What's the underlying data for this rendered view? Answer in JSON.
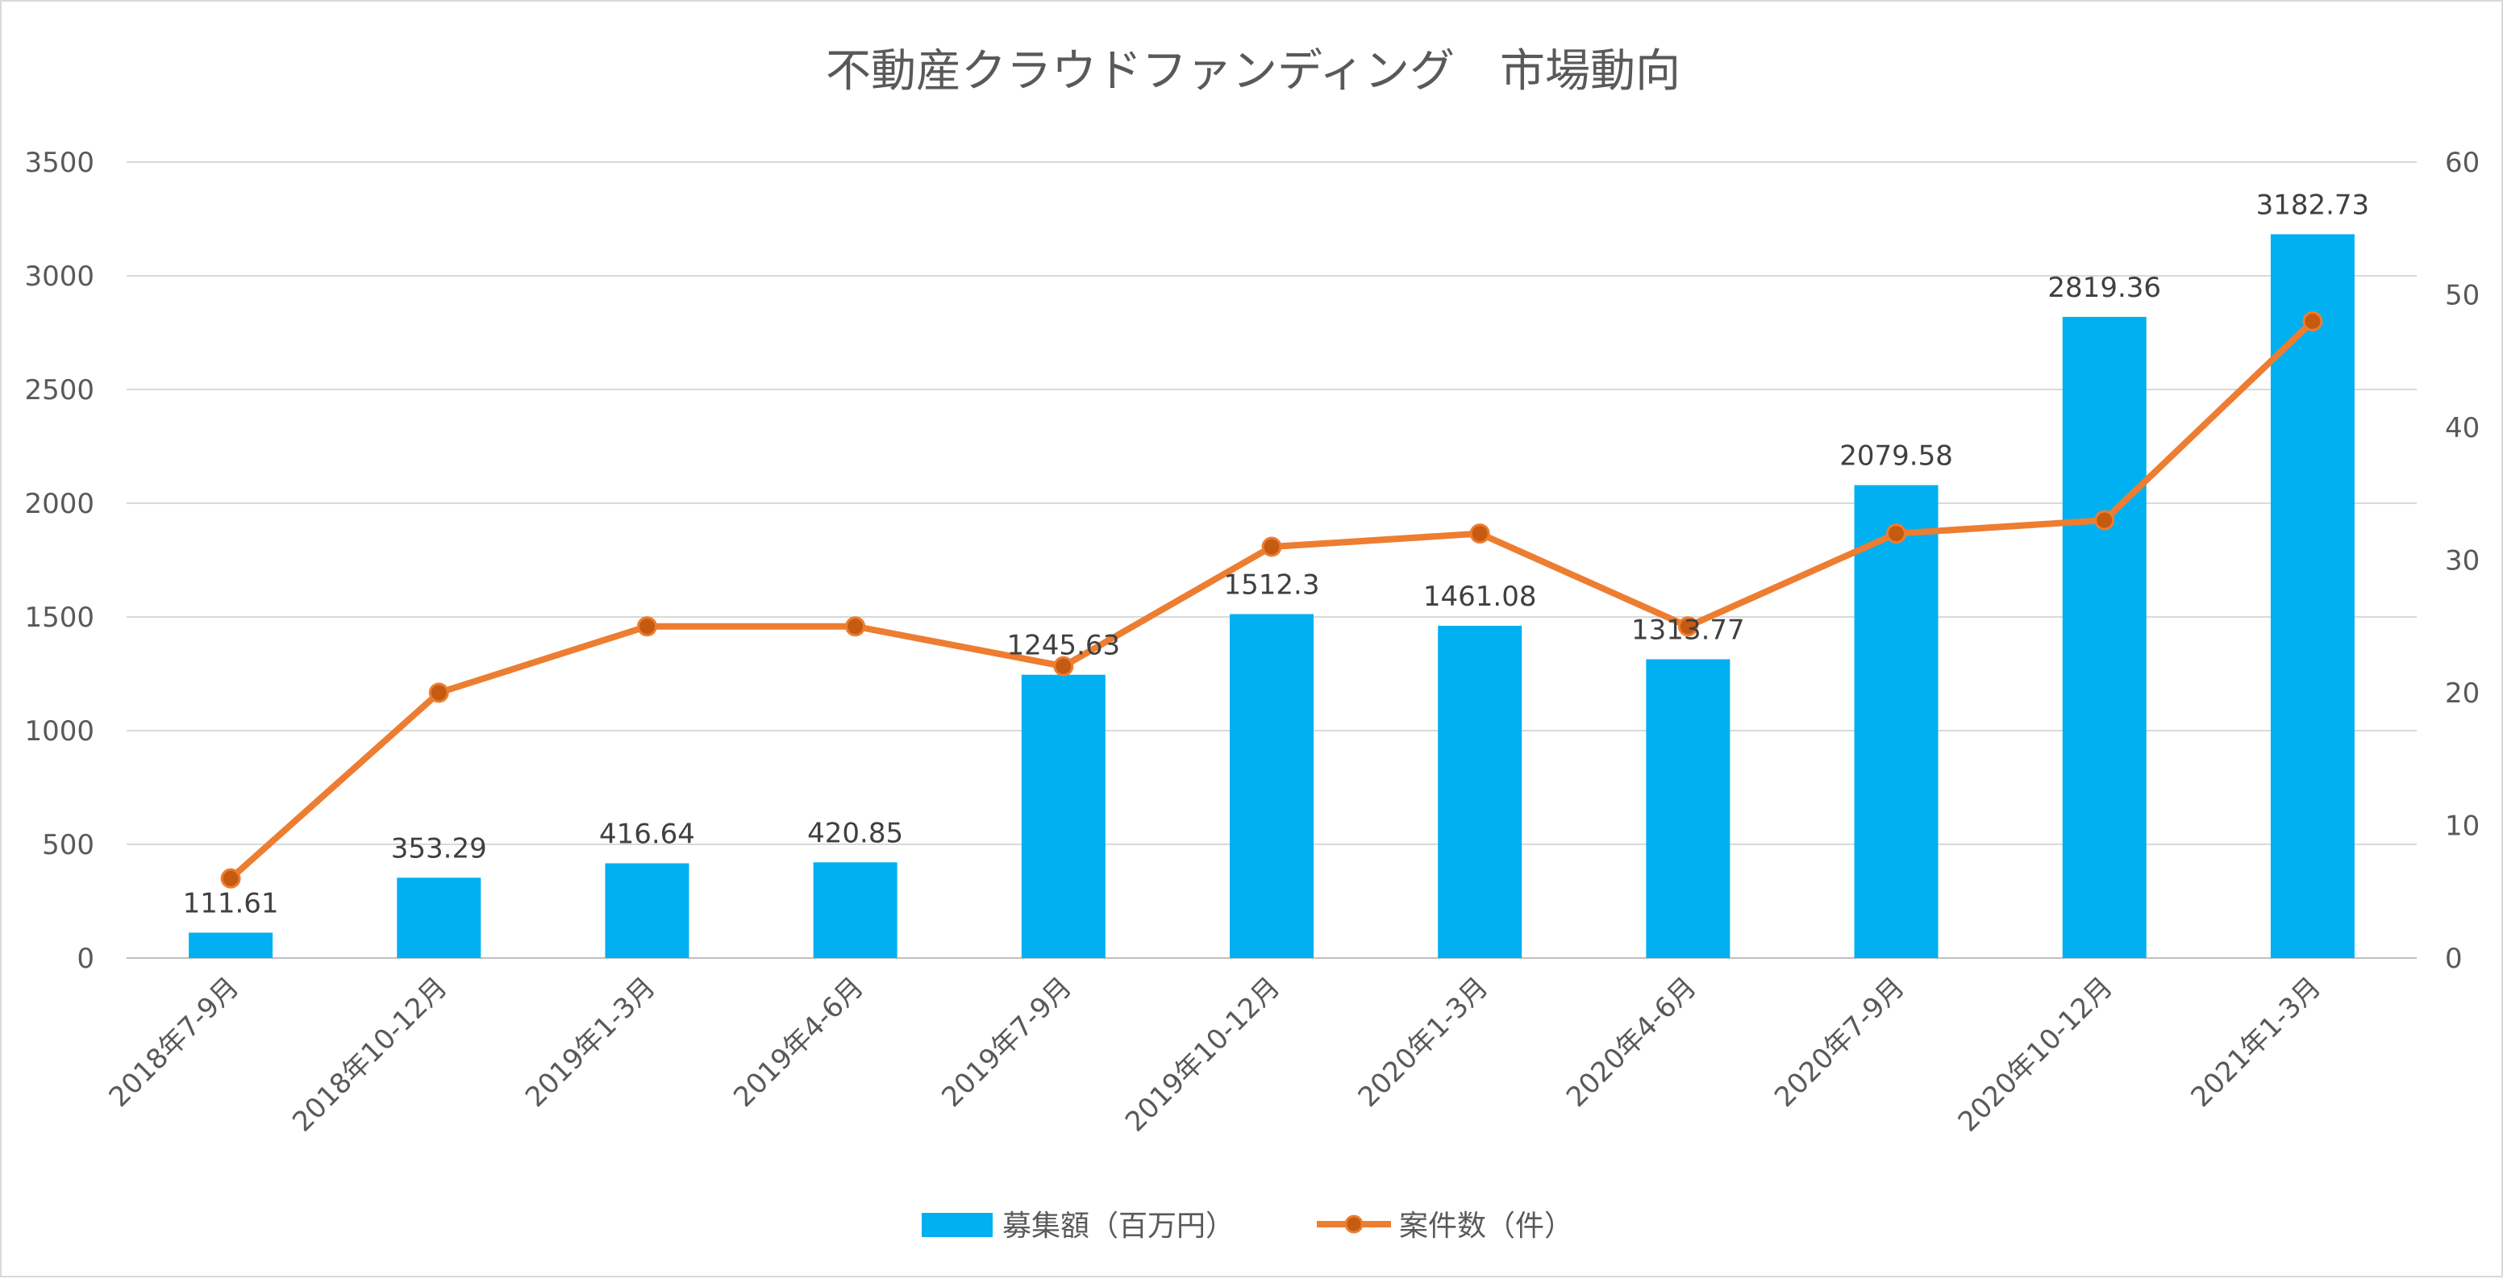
{
  "chart_data": {
    "type": "bar",
    "title": "不動産クラウドファンディング　市場動向",
    "categories": [
      "2018年7-9月",
      "2018年10-12月",
      "2019年1-3月",
      "2019年4-6月",
      "2019年7-9月",
      "2019年10-12月",
      "2020年1-3月",
      "2020年4-6月",
      "2020年7-9月",
      "2020年10-12月",
      "2021年1-3月"
    ],
    "series": [
      {
        "name": "募集額（百万円）",
        "type": "bar",
        "axis": "left",
        "color": "#00B0F0",
        "values": [
          111.61,
          353.29,
          416.64,
          420.85,
          1245.63,
          1512.3,
          1461.08,
          1313.77,
          2079.58,
          2819.36,
          3182.73
        ],
        "labels": [
          "111.61",
          "353.29",
          "416.64",
          "420.85",
          "1245.63",
          "1512.3",
          "1461.08",
          "1313.77",
          "2079.58",
          "2819.36",
          "3182.73"
        ]
      },
      {
        "name": "案件数（件）",
        "type": "line",
        "axis": "right",
        "color": "#ED7D31",
        "marker_color": "#C55A11",
        "values": [
          6,
          20,
          25,
          25,
          22,
          31,
          32,
          25,
          32,
          33,
          48
        ]
      }
    ],
    "y_left": {
      "min": 0,
      "max": 3500,
      "ticks": [
        "0",
        "500",
        "1000",
        "1500",
        "2000",
        "2500",
        "3000",
        "3500"
      ]
    },
    "y_right": {
      "min": 0,
      "max": 60,
      "ticks": [
        "0",
        "10",
        "20",
        "30",
        "40",
        "50",
        "60"
      ]
    },
    "grid": true,
    "legend_position": "bottom"
  }
}
